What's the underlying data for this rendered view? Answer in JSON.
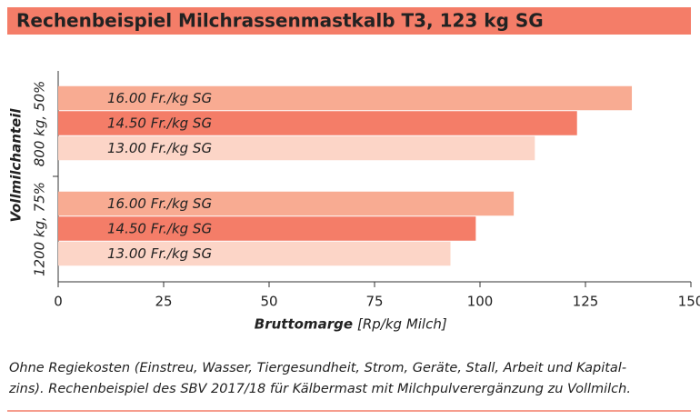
{
  "chart_data": {
    "type": "barh",
    "title": "Rechenbeispiel Milchrassenmastkalb T3, 123 kg SG",
    "categories": [
      "800 kg, 50%",
      "1200 kg, 75%"
    ],
    "series": [
      {
        "name": "16.00 Fr./kg SG",
        "color": "#f8ab92",
        "values": [
          136,
          108
        ]
      },
      {
        "name": "14.50 Fr./kg SG",
        "color": "#f47d68",
        "values": [
          123,
          99
        ]
      },
      {
        "name": "13.00 Fr./kg SG",
        "color": "#fcd5c7",
        "values": [
          113,
          93
        ]
      }
    ],
    "y_label": "Vollmilchanteil",
    "x_label": "Bruttomarge",
    "x_unit": "[Rp/kg Milch]",
    "xlim": [
      0,
      150
    ],
    "xticks": [
      0,
      25,
      50,
      75,
      100,
      125,
      150
    ],
    "caption": [
      "Ohne Regiekosten (Einstreu, Wasser, Tiergesundheit, Strom, Geräte, Stall, Arbeit und Kapital-",
      "zins). Rechenbeispiel des SBV 2017/18 für Kälbermast mit Milchpulverergänzung zu Vollmilch."
    ]
  }
}
